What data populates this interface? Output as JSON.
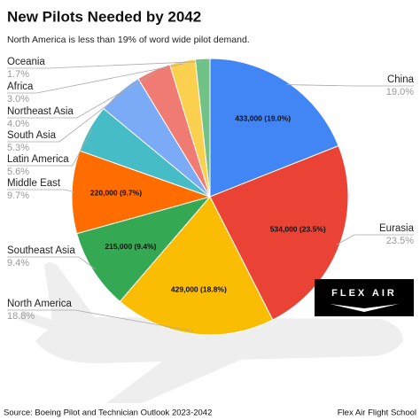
{
  "chart_data": {
    "type": "pie",
    "title": "New Pilots Needed by 2042",
    "subtitle": "North America is less than 19% of word wide pilot demand.",
    "categories": [
      "China",
      "Eurasia",
      "North America",
      "Southeast Asia",
      "Middle East",
      "Latin America",
      "South Asia",
      "Northeast Asia",
      "Africa",
      "Oceania"
    ],
    "values": [
      19.0,
      23.5,
      18.8,
      9.4,
      9.7,
      5.6,
      5.3,
      4.0,
      3.0,
      1.7
    ],
    "value_labels": [
      "19.0%",
      "23.5%",
      "18.8%",
      "9.4%",
      "9.7%",
      "5.6%",
      "5.3%",
      "4.0%",
      "3.0%",
      "1.7%"
    ],
    "inner_labels": [
      "433,000 (19.0%)",
      "534,000 (23.5%)",
      "429,000 (18.8%)",
      "215,000 (9.4%)",
      "220,000 (9.7%)",
      null,
      null,
      null,
      null,
      null
    ],
    "colors": [
      "#4285f4",
      "#ea4335",
      "#fbbc04",
      "#34a853",
      "#ff6d01",
      "#46bdc6",
      "#7baaf7",
      "#f07b72",
      "#fcd04f",
      "#71c287"
    ],
    "logo": "FLEX AIR",
    "source": "Source: Boeing Pilot and Technician Outlook 2023-2042",
    "credit": "Flex Air Flight School"
  }
}
